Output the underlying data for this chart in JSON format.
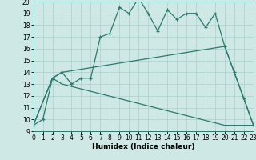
{
  "xlabel": "Humidex (Indice chaleur)",
  "line1_x": [
    0,
    1,
    2,
    3,
    4,
    5,
    6,
    7,
    8,
    9,
    10,
    11,
    12,
    13,
    14,
    15,
    16,
    17,
    18,
    19,
    20,
    21,
    22,
    23
  ],
  "line1_y": [
    9.5,
    10.0,
    13.5,
    14.0,
    13.0,
    13.5,
    13.5,
    17.0,
    17.3,
    19.5,
    19.0,
    20.3,
    19.0,
    17.5,
    19.3,
    18.5,
    19.0,
    19.0,
    17.8,
    19.0,
    16.2,
    14.0,
    11.8,
    9.5
  ],
  "line2_x": [
    0,
    2,
    3,
    20,
    23
  ],
  "line2_y": [
    9.5,
    13.5,
    14.0,
    16.2,
    9.5
  ],
  "line3_x": [
    0,
    2,
    3,
    20,
    23
  ],
  "line3_y": [
    9.5,
    13.5,
    13.0,
    9.5,
    9.5
  ],
  "bg_color": "#cde8e5",
  "grid_color": "#aad0cc",
  "line_color": "#2a7a6e",
  "xlim": [
    0,
    23
  ],
  "ylim": [
    9,
    20
  ],
  "yticks": [
    9,
    10,
    11,
    12,
    13,
    14,
    15,
    16,
    17,
    18,
    19,
    20
  ],
  "xticks": [
    0,
    1,
    2,
    3,
    4,
    5,
    6,
    7,
    8,
    9,
    10,
    11,
    12,
    13,
    14,
    15,
    16,
    17,
    18,
    19,
    20,
    21,
    22,
    23
  ],
  "tick_fontsize": 5.5,
  "xlabel_fontsize": 6.5,
  "lw": 0.9,
  "marker_size": 3.5,
  "marker_lw": 0.9
}
